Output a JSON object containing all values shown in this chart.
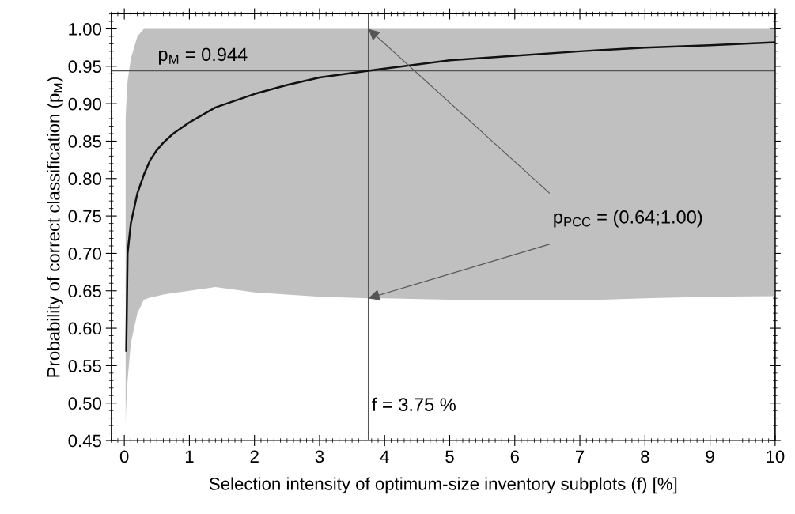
{
  "chart_data": {
    "type": "line",
    "xlabel": "Selection intensity of optimum-size inventory subplots (f) [%]",
    "ylabel": "Probability of correct classification (p$_{M}$)",
    "series": [
      {
        "color": "#111111",
        "x": [
          0.02,
          0.03,
          0.05,
          0.1,
          0.2,
          0.3,
          0.4,
          0.5,
          0.6,
          0.75,
          1,
          1.4,
          2,
          2.5,
          3,
          3.75,
          4,
          5,
          6,
          7,
          8,
          9,
          10
        ],
        "values": [
          null,
          0.57,
          0.7,
          0.74,
          0.78,
          0.805,
          0.825,
          0.838,
          0.848,
          0.86,
          0.875,
          0.895,
          0.913,
          0.925,
          0.935,
          0.944,
          0.947,
          0.958,
          0.964,
          0.97,
          0.975,
          0.978,
          0.982
        ],
        "upper": [
          0.88,
          0.9,
          0.93,
          0.96,
          0.99,
          1.0,
          1.0,
          1.0,
          1.0,
          1.0,
          1.0,
          1.0,
          1.0,
          1.0,
          1.0,
          1.0,
          1.0,
          1.0,
          1.0,
          1.0,
          1.0,
          1.0,
          1.0
        ],
        "lower": [
          0.47,
          0.5,
          0.53,
          0.58,
          0.62,
          0.638,
          0.641,
          0.643,
          0.645,
          0.647,
          0.65,
          0.655,
          0.648,
          0.645,
          0.642,
          0.64,
          0.64,
          0.638,
          0.637,
          0.637,
          0.64,
          0.642,
          0.643
        ]
      }
    ],
    "ref_lines": [
      {
        "axis": "y",
        "value": 0.944,
        "label": "p$_{M}$ = 0.944",
        "color": "#555555"
      },
      {
        "axis": "x",
        "value": 3.75,
        "label": "f = 3.75 %",
        "color": "#555555"
      }
    ],
    "annotations": [
      {
        "text": "p$_{PCC}$ = (0.64;1.00)",
        "x": 3.75,
        "y": 1.0
      }
    ],
    "xlim": [
      -0.2,
      10
    ],
    "xticks": [
      0,
      1,
      2,
      3,
      4,
      5,
      6,
      7,
      8,
      9,
      10
    ],
    "ylim": [
      0.45,
      1.02
    ],
    "yticks": [
      {
        "value": 0.45,
        "label": "0.45"
      },
      {
        "value": 0.5,
        "label": "0.50"
      },
      {
        "value": 0.55,
        "label": "0.55"
      },
      {
        "value": 0.6,
        "label": "0.60"
      },
      {
        "value": 0.65,
        "label": "0.65"
      },
      {
        "value": 0.7,
        "label": "0.70"
      },
      {
        "value": 0.75,
        "label": "0.75"
      },
      {
        "value": 0.8,
        "label": "0.80"
      },
      {
        "value": 0.85,
        "label": "0.85"
      },
      {
        "value": 0.9,
        "label": "0.90"
      },
      {
        "value": 0.95,
        "label": "0.95"
      },
      {
        "value": 1.0,
        "label": "1.00"
      }
    ],
    "line_style": "solid"
  }
}
